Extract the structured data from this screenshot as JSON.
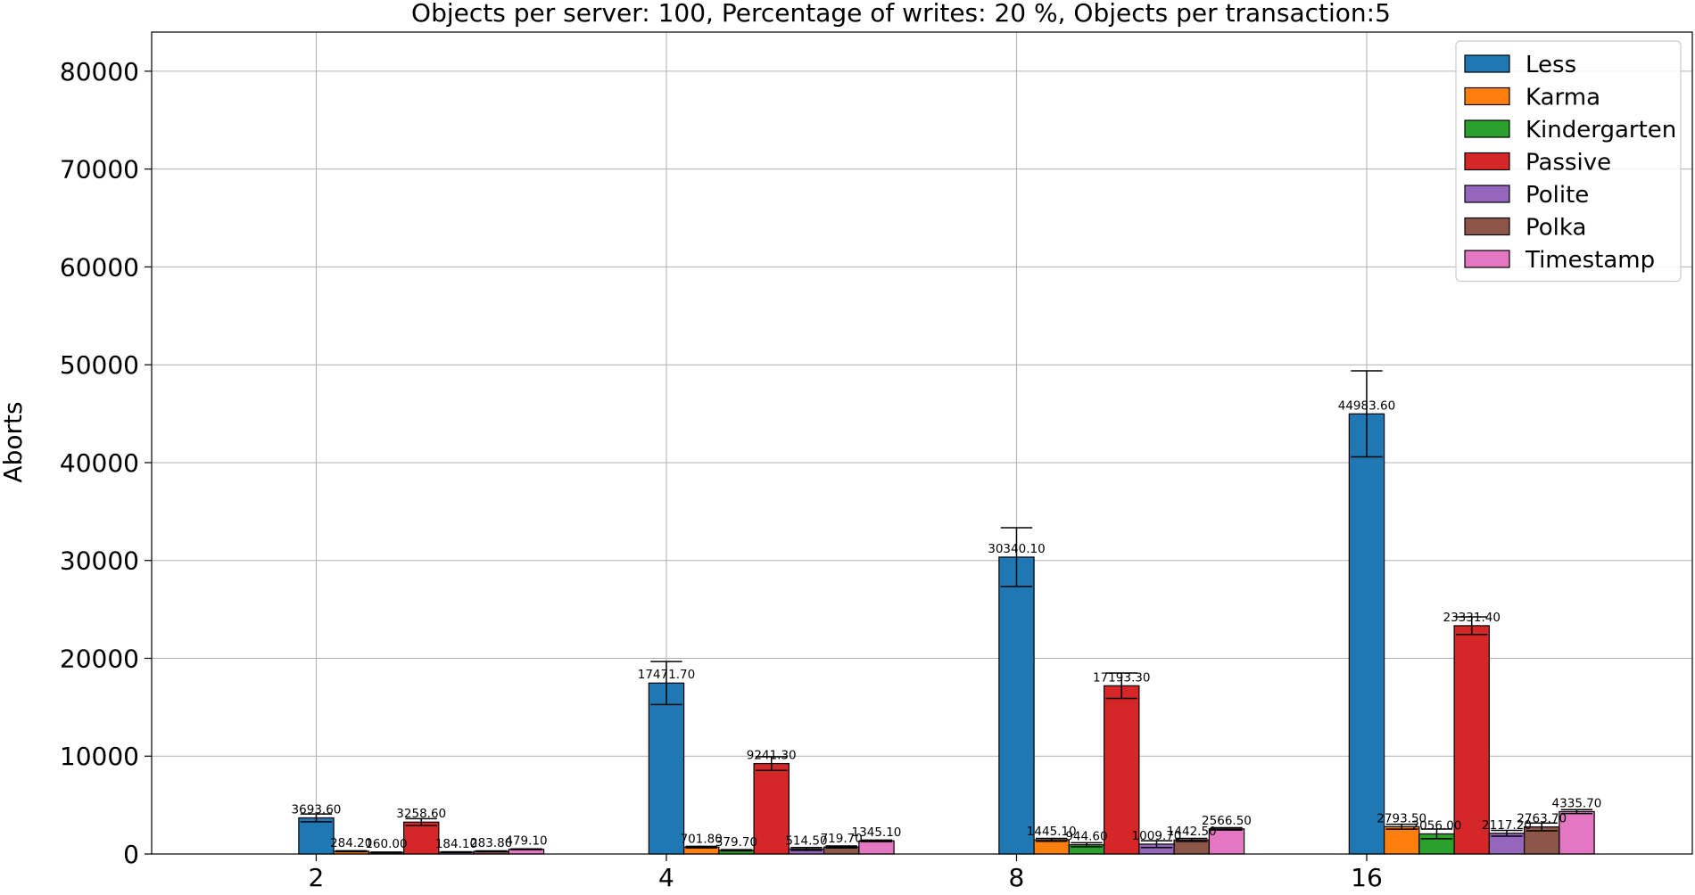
{
  "chart_data": {
    "type": "bar",
    "title": "Objects per server: 100, Percentage of writes: 20 %, Objects per transaction:5",
    "xlabel": "",
    "ylabel": "Aborts",
    "categories": [
      "2",
      "4",
      "8",
      "16"
    ],
    "ylim": [
      0,
      84000
    ],
    "yticks": [
      0,
      10000,
      20000,
      30000,
      40000,
      50000,
      60000,
      70000,
      80000
    ],
    "grid": true,
    "legend_position": "top-right",
    "series": [
      {
        "name": "Less",
        "color": "#1f77b4",
        "values": [
          3693.6,
          17471.7,
          30340.1,
          44983.6
        ],
        "errors": [
          400,
          2200,
          3000,
          4400
        ],
        "labels": [
          "3693.60",
          "17471.70",
          "30340.10",
          "44983.60"
        ]
      },
      {
        "name": "Karma",
        "color": "#ff7f0e",
        "values": [
          284.2,
          701.8,
          1445.1,
          2793.5
        ],
        "errors": [
          50,
          80,
          150,
          250
        ],
        "labels": [
          "284.20",
          "701.80",
          "1445.10",
          "2793.50"
        ]
      },
      {
        "name": "Kindergarten",
        "color": "#2ca02c",
        "values": [
          160.0,
          379.7,
          944.6,
          2056.0
        ],
        "errors": [
          30,
          60,
          200,
          500
        ],
        "labels": [
          "160.00",
          "379.70",
          "944.60",
          "2056.00"
        ]
      },
      {
        "name": "Passive",
        "color": "#d62728",
        "values": [
          3258.6,
          9241.3,
          17193.3,
          23331.4
        ],
        "errors": [
          350,
          700,
          1300,
          900
        ],
        "labels": [
          "3258.60",
          "9241.30",
          "17193.30",
          "23331.40"
        ]
      },
      {
        "name": "Polite",
        "color": "#9467bd",
        "values": [
          184.1,
          514.5,
          1009.7,
          2117.2
        ],
        "errors": [
          40,
          150,
          350,
          300
        ],
        "labels": [
          "184.10",
          "514.50",
          "1009.70",
          "2117.20"
        ]
      },
      {
        "name": "Polka",
        "color": "#8c564b",
        "values": [
          283.8,
          719.7,
          1442.5,
          2763.7
        ],
        "errors": [
          40,
          100,
          150,
          400
        ],
        "labels": [
          "283.80",
          "719.70",
          "1442.50",
          "2763.70"
        ]
      },
      {
        "name": "Timestamp",
        "color": "#e377c2",
        "values": [
          479.1,
          1345.1,
          2566.5,
          4335.7
        ],
        "errors": [
          40,
          80,
          120,
          200
        ],
        "labels": [
          "479.10",
          "1345.10",
          "2566.50",
          "4335.70"
        ]
      }
    ]
  }
}
